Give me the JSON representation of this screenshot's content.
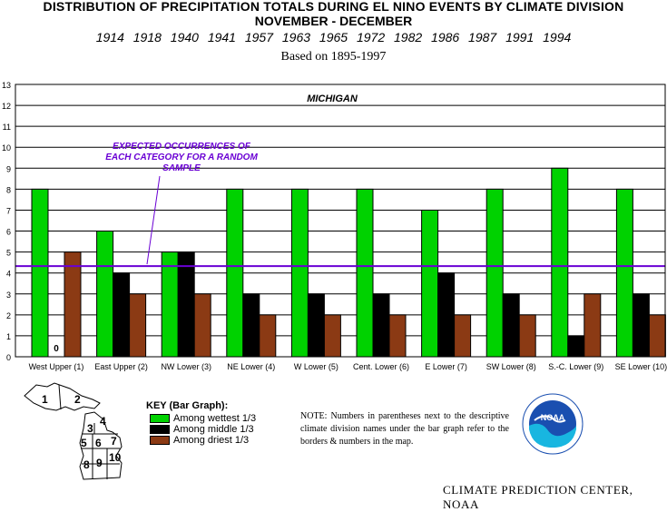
{
  "title_line1": "DISTRIBUTION OF PRECIPITATION TOTALS DURING EL NINO EVENTS BY CLIMATE DIVISION",
  "title_line2": "NOVEMBER - DECEMBER",
  "years": "1914  1918  1940  1941  1957  1963  1965  1972  1982  1986  1987  1991  1994",
  "basis": "Based on 1895-1997",
  "chart_data": {
    "type": "bar",
    "title": "MICHIGAN",
    "categories": [
      "West Upper (1)",
      "East Upper (2)",
      "NW Lower (3)",
      "NE Lower (4)",
      "W Lower (5)",
      "Cent. Lower (6)",
      "E Lower (7)",
      "SW Lower (8)",
      "S.-C. Lower (9)",
      "SE Lower (10)"
    ],
    "series": [
      {
        "name": "Among wettest 1/3",
        "color": "#00d200",
        "values": [
          8,
          6,
          5,
          8,
          8,
          8,
          7,
          8,
          9,
          8
        ]
      },
      {
        "name": "Among middle 1/3",
        "color": "#000000",
        "values": [
          0,
          4,
          5,
          3,
          3,
          3,
          4,
          3,
          1,
          3
        ]
      },
      {
        "name": "Among driest 1/3",
        "color": "#8b3a14",
        "values": [
          5,
          3,
          3,
          2,
          2,
          2,
          2,
          2,
          3,
          2
        ]
      }
    ],
    "zero_label": "0",
    "ylim": [
      0,
      13
    ],
    "yticks": [
      0,
      1,
      2,
      3,
      4,
      5,
      6,
      7,
      8,
      9,
      10,
      11,
      12,
      13
    ],
    "grid": true,
    "expected_line": {
      "value": 4.33,
      "color": "#6a00d4",
      "label_lines": [
        "EXPECTED OCCURRENCES OF",
        "EACH CATEGORY FOR A RANDOM",
        "SAMPLE"
      ]
    }
  },
  "key": {
    "title": "KEY (Bar Graph):",
    "items": [
      "Among wettest 1/3",
      "Among middle 1/3",
      "Among driest 1/3"
    ]
  },
  "note": "NOTE:  Numbers in parentheses next to the descriptive climate division names under the bar graph refer to the borders & numbers in the map.",
  "map_labels": [
    "1",
    "2",
    "3",
    "4",
    "5",
    "6",
    "7",
    "8",
    "9",
    "10"
  ],
  "logo_text": "NOAA",
  "credit": "CLIMATE PREDICTION CENTER, NOAA"
}
